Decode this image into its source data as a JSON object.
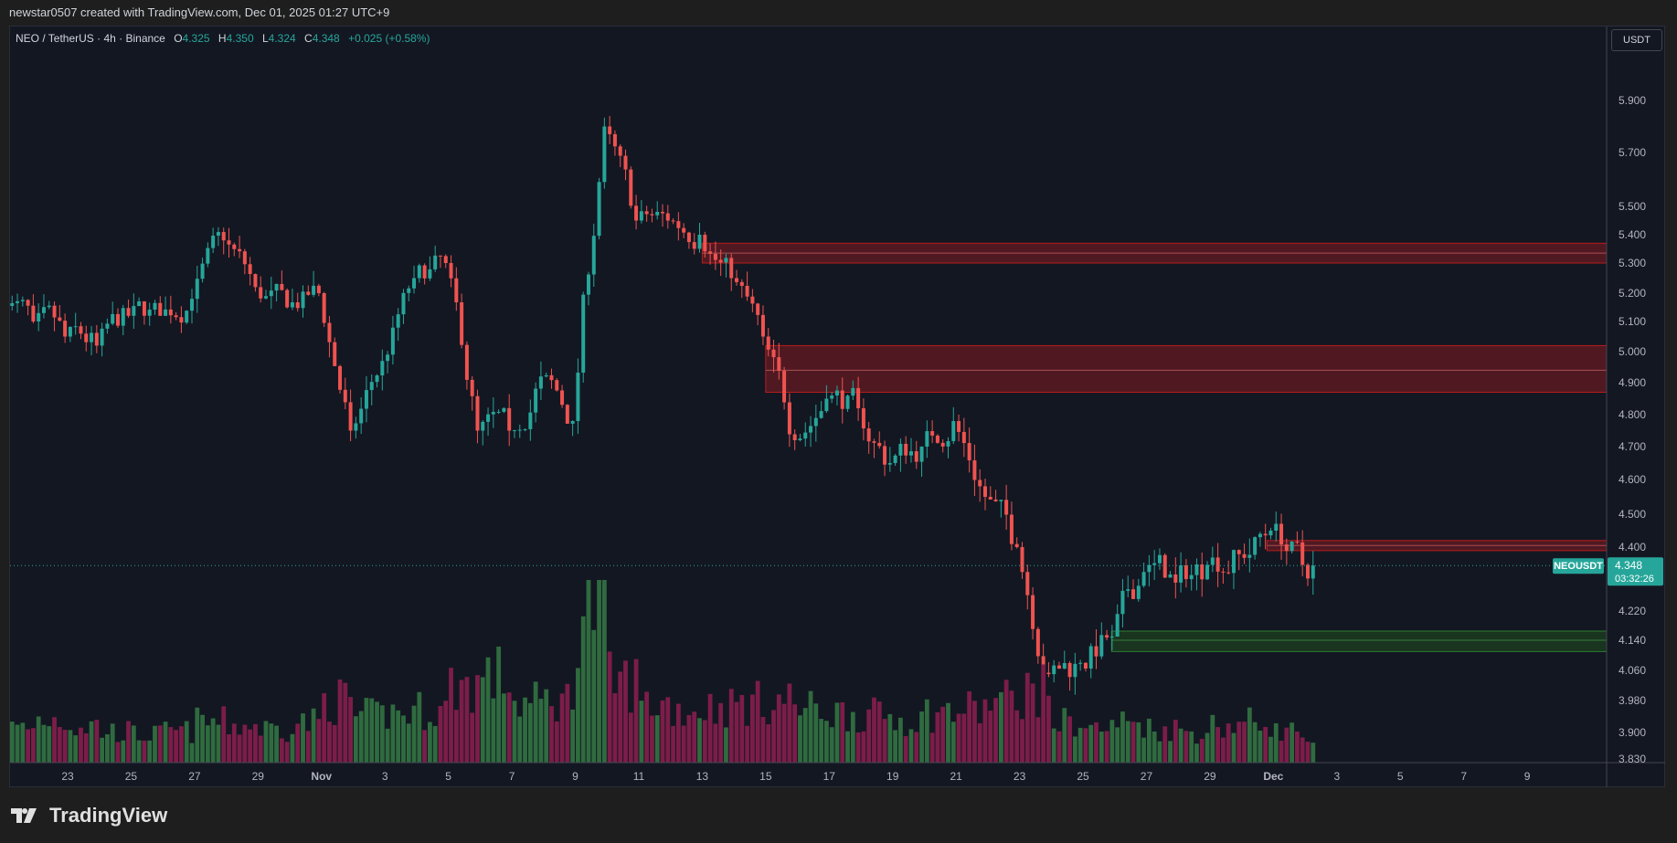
{
  "header": {
    "caption": "newstar0507 created with TradingView.com, Dec 01, 2025 01:27 UTC+9"
  },
  "legend": {
    "symbol": "NEO / TetherUS · 4h · Binance",
    "o_label": "O",
    "o": "4.325",
    "h_label": "H",
    "h": "4.350",
    "l_label": "L",
    "l": "4.324",
    "c_label": "C",
    "c": "4.348",
    "change": "+0.025 (+0.58%)"
  },
  "currency_button": "USDT",
  "price_tag": {
    "symbol": "NEOUSDT",
    "price": "4.348",
    "countdown": "03:32:26"
  },
  "logo": {
    "text": "TradingView"
  },
  "colors": {
    "up": "#26a69a",
    "down": "#ef5350",
    "vol_up": "#2f6b3f",
    "vol_down": "#7c1d49",
    "bg": "#131722",
    "zone_red": "#5c1a22",
    "zone_green": "#1b3a1f"
  },
  "chart_data": {
    "type": "candlestick",
    "title": "NEO / TetherUS · 4h · Binance",
    "ylabel": "USDT",
    "y_ticks": [
      5.9,
      5.7,
      5.5,
      5.4,
      5.3,
      5.2,
      5.1,
      5.0,
      4.9,
      4.8,
      4.7,
      4.6,
      4.5,
      4.4,
      4.22,
      4.14,
      4.06,
      3.98,
      3.9,
      3.83
    ],
    "y_tick_labels": [
      "5.900",
      "5.700",
      "5.500",
      "5.400",
      "5.300",
      "5.200",
      "5.100",
      "5.000",
      "4.900",
      "4.800",
      "4.700",
      "4.600",
      "4.500",
      "4.400",
      "4.220",
      "4.140",
      "4.060",
      "3.980",
      "3.900",
      "3.830"
    ],
    "x_ticks": [
      "23",
      "25",
      "27",
      "29",
      "Nov",
      "3",
      "5",
      "7",
      "9",
      "11",
      "13",
      "15",
      "17",
      "19",
      "21",
      "23",
      "25",
      "27",
      "29",
      "Dec",
      "3",
      "5",
      "7",
      "9"
    ],
    "start_date": "Oct 21",
    "daily_close": [
      5.1,
      5.05,
      5.02,
      5.12,
      5.12,
      5.18,
      5.38,
      5.22,
      5.15,
      5.2,
      4.75,
      4.97,
      5.25,
      5.3,
      4.75,
      4.75,
      4.92,
      4.78,
      5.8,
      5.45,
      5.45,
      5.4,
      5.25,
      5.05,
      4.72,
      4.85,
      4.82,
      4.65,
      4.7,
      4.78,
      4.55,
      4.4,
      4.05,
      4.08,
      4.15,
      4.33,
      4.3,
      4.35,
      4.38,
      4.45,
      4.35,
      4.348
    ],
    "daily_volume_relative": [
      22,
      28,
      24,
      20,
      18,
      20,
      26,
      24,
      22,
      26,
      40,
      30,
      32,
      34,
      50,
      55,
      38,
      40,
      100,
      52,
      38,
      34,
      36,
      38,
      40,
      34,
      32,
      30,
      28,
      32,
      34,
      40,
      46,
      26,
      22,
      26,
      22,
      20,
      24,
      26,
      20,
      10
    ],
    "last_price": 4.348,
    "zones": [
      {
        "kind": "supply",
        "top": 5.37,
        "bottom": 5.3,
        "mid": 5.335,
        "start_day": 22
      },
      {
        "kind": "supply",
        "top": 5.02,
        "bottom": 4.87,
        "mid": 4.94,
        "start_day": 24
      },
      {
        "kind": "supply",
        "top": 4.42,
        "bottom": 4.39,
        "mid": 4.405,
        "start_day": 39.8
      },
      {
        "kind": "demand",
        "top": 4.165,
        "bottom": 4.11,
        "mid": 4.14,
        "start_day": 34.9
      }
    ]
  }
}
